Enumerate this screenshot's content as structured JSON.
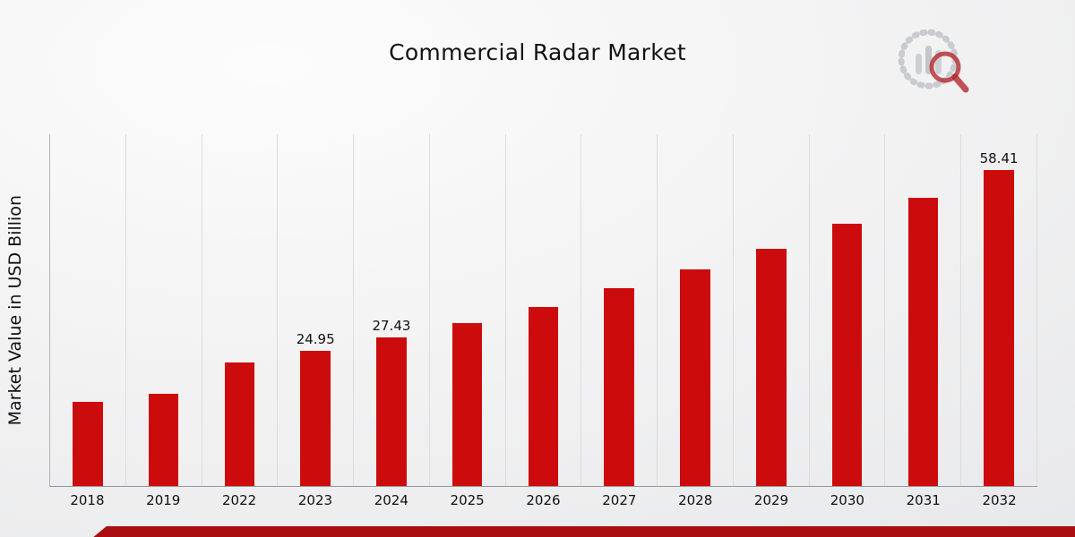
{
  "title": "Commercial Radar Market",
  "chart_data": {
    "type": "bar",
    "title": "Commercial Radar Market",
    "xlabel": "",
    "ylabel": "Market Value in USD Billion",
    "categories": [
      "2018",
      "2019",
      "2022",
      "2023",
      "2024",
      "2025",
      "2026",
      "2027",
      "2028",
      "2029",
      "2030",
      "2031",
      "2032"
    ],
    "values": [
      15.6,
      17.1,
      22.9,
      24.95,
      27.43,
      30.1,
      33.0,
      36.6,
      40.0,
      43.8,
      48.4,
      53.2,
      58.41
    ],
    "data_labels": {
      "2023": "24.95",
      "2024": "27.43",
      "2032": "58.41"
    },
    "ylim": [
      0,
      65
    ],
    "grid": "vertical",
    "legend": "none",
    "bar_color": "#CC0C0C"
  },
  "branding": {
    "logo": "bar-chart-magnifier-logo",
    "accent_bar_color": "#A90D10",
    "logo_gray": "#c9cccf",
    "logo_red": "#b5282e"
  }
}
